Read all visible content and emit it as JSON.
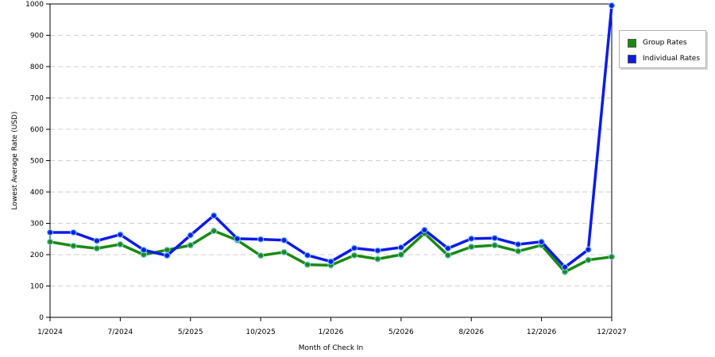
{
  "chart_data": {
    "type": "line",
    "title": "",
    "xlabel": "Month of Check In",
    "ylabel": "Lowest Average Rate (USD)",
    "ylim": [
      0,
      1000
    ],
    "yticks": [
      0,
      100,
      200,
      300,
      400,
      500,
      600,
      700,
      800,
      900,
      1000
    ],
    "grid": true,
    "legend_position": "right",
    "x_tick_labels": [
      "1/2024",
      "7/2024",
      "5/2025",
      "10/2025",
      "1/2026",
      "5/2026",
      "8/2026",
      "12/2026",
      "12/2027"
    ],
    "series": [
      {
        "name": "Group Rates",
        "color": "#1a8a12",
        "values": [
          241,
          228,
          220,
          233,
          200,
          215,
          230,
          276,
          246,
          197,
          208,
          168,
          166,
          198,
          186,
          200,
          268,
          198,
          225,
          230,
          211,
          230,
          145,
          183,
          193
        ]
      },
      {
        "name": "Individual Rates",
        "color": "#0b1be8",
        "values": [
          271,
          271,
          244,
          264,
          215,
          197,
          262,
          325,
          251,
          249,
          246,
          198,
          178,
          221,
          213,
          223,
          279,
          220,
          251,
          253,
          233,
          241,
          160,
          216,
          995
        ]
      }
    ]
  }
}
